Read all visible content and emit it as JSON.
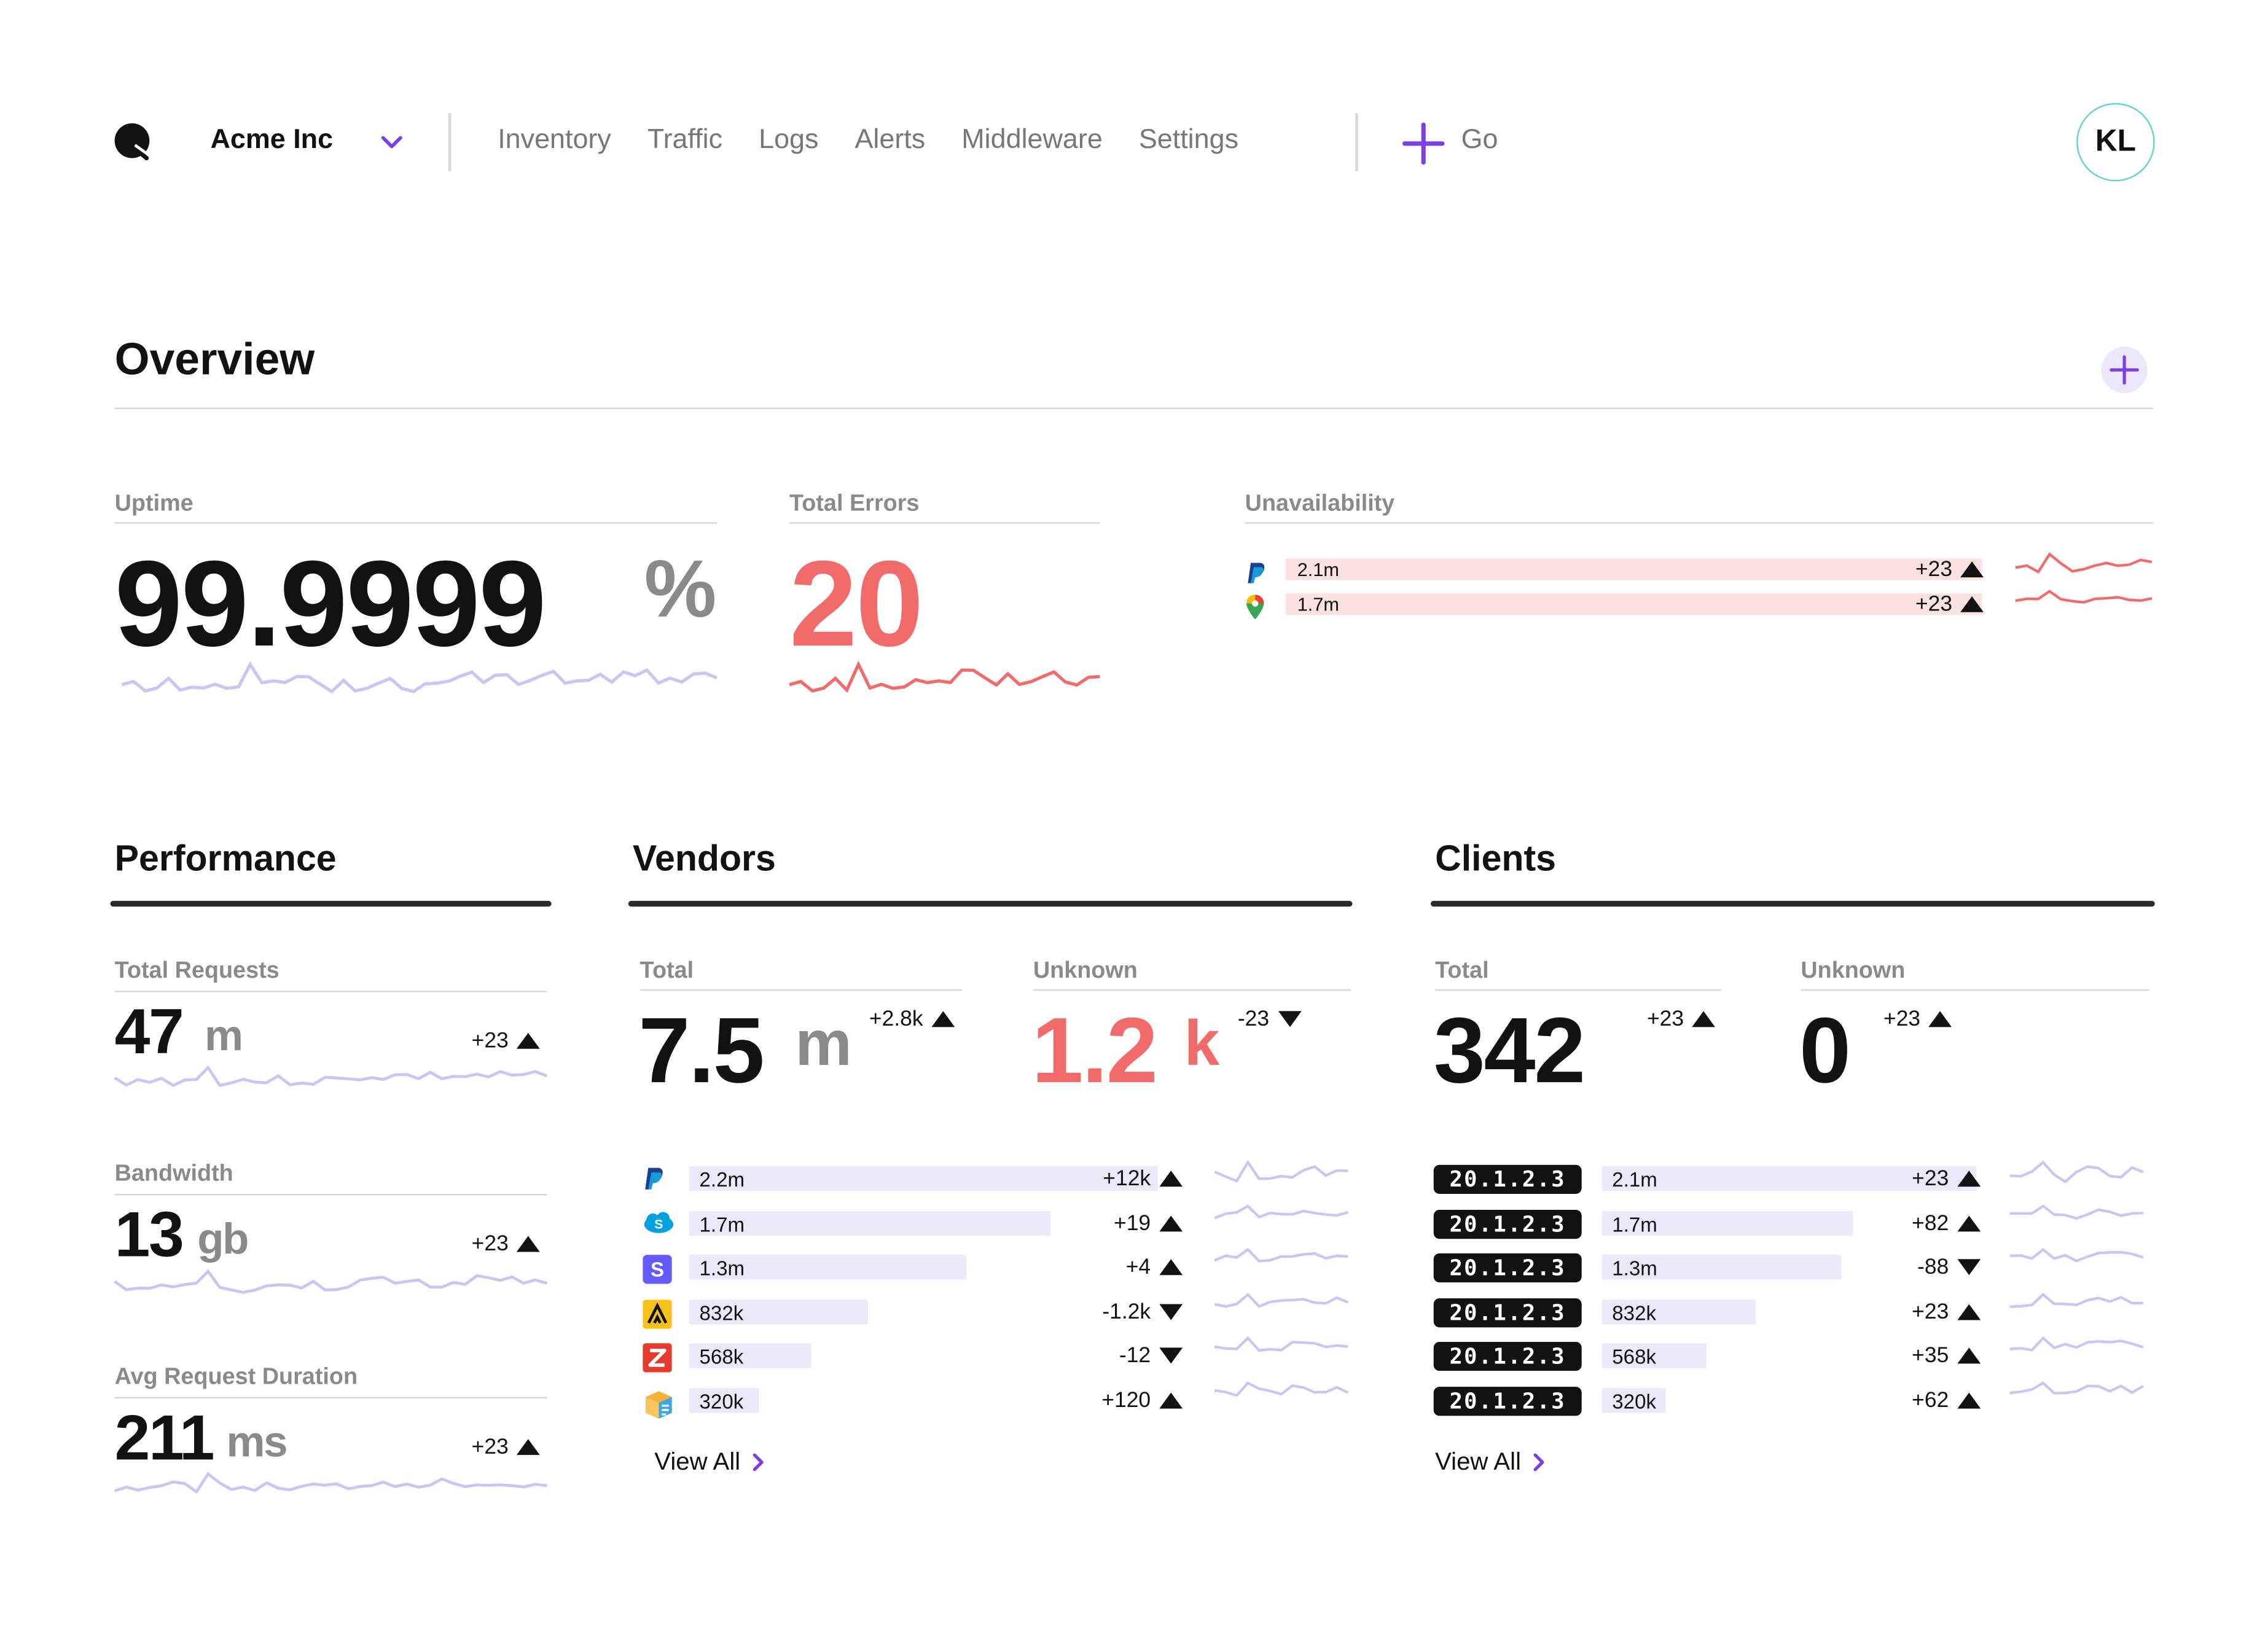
{
  "header": {
    "org": "Acme Inc",
    "nav": [
      "Inventory",
      "Traffic",
      "Logs",
      "Alerts",
      "Middleware",
      "Settings"
    ],
    "go_label": "Go",
    "avatar_initials": "KL"
  },
  "overview": {
    "title": "Overview",
    "uptime": {
      "label": "Uptime",
      "value": "99.9999",
      "unit": "%"
    },
    "errors": {
      "label": "Total Errors",
      "value": "20"
    },
    "unavailability": {
      "label": "Unavailability",
      "rows": [
        {
          "icon": "paypal-icon",
          "value": "2.1m",
          "delta": "+23",
          "dir": "up"
        },
        {
          "icon": "google-maps-icon",
          "value": "1.7m",
          "delta": "+23",
          "dir": "up"
        }
      ]
    }
  },
  "performance": {
    "title": "Performance",
    "metrics": [
      {
        "label": "Total Requests",
        "value": "47",
        "unit": "m",
        "delta": "+23",
        "dir": "up"
      },
      {
        "label": "Bandwidth",
        "value": "13",
        "unit": "gb",
        "delta": "+23",
        "dir": "up"
      },
      {
        "label": "Avg Request Duration",
        "value": "211",
        "unit": "ms",
        "delta": "+23",
        "dir": "up"
      }
    ]
  },
  "vendors": {
    "title": "Vendors",
    "total": {
      "label": "Total",
      "value": "7.5",
      "unit": "m",
      "delta": "+2.8k",
      "dir": "up"
    },
    "unknown": {
      "label": "Unknown",
      "value": "1.2",
      "unit": "k",
      "delta": "-23",
      "dir": "down"
    },
    "rows": [
      {
        "icon": "paypal-icon",
        "value": "2.2m",
        "fraction": 1.0,
        "delta": "+12k",
        "dir": "up"
      },
      {
        "icon": "salesforce-icon",
        "value": "1.7m",
        "fraction": 0.77,
        "delta": "+19",
        "dir": "up"
      },
      {
        "icon": "stripe-icon",
        "value": "1.3m",
        "fraction": 0.59,
        "delta": "+4",
        "dir": "up"
      },
      {
        "icon": "vendor-a-icon",
        "value": "832k",
        "fraction": 0.38,
        "delta": "-1.2k",
        "dir": "down"
      },
      {
        "icon": "zendesk-icon",
        "value": "568k",
        "fraction": 0.26,
        "delta": "-12",
        "dir": "down"
      },
      {
        "icon": "box-icon",
        "value": "320k",
        "fraction": 0.15,
        "delta": "+120",
        "dir": "up"
      }
    ],
    "view_all": "View All"
  },
  "clients": {
    "title": "Clients",
    "total": {
      "label": "Total",
      "value": "342",
      "delta": "+23",
      "dir": "up"
    },
    "unknown": {
      "label": "Unknown",
      "value": "0",
      "delta": "+23",
      "dir": "up"
    },
    "rows": [
      {
        "ip": "20.1.2.3",
        "value": "2.1m",
        "fraction": 1.0,
        "delta": "+23",
        "dir": "up"
      },
      {
        "ip": "20.1.2.3",
        "value": "1.7m",
        "fraction": 0.67,
        "delta": "+82",
        "dir": "up"
      },
      {
        "ip": "20.1.2.3",
        "value": "1.3m",
        "fraction": 0.64,
        "delta": "-88",
        "dir": "down"
      },
      {
        "ip": "20.1.2.3",
        "value": "832k",
        "fraction": 0.41,
        "delta": "+23",
        "dir": "up"
      },
      {
        "ip": "20.1.2.3",
        "value": "568k",
        "fraction": 0.28,
        "delta": "+35",
        "dir": "up"
      },
      {
        "ip": "20.1.2.3",
        "value": "320k",
        "fraction": 0.17,
        "delta": "+62",
        "dir": "up"
      }
    ],
    "view_all": "View All"
  },
  "colors": {
    "accent": "#7b3fe4",
    "error": "#f26b6b",
    "spark": "#cbc4f4",
    "bar": "#ece9fb",
    "unavail_bar": "#fde2e2"
  }
}
